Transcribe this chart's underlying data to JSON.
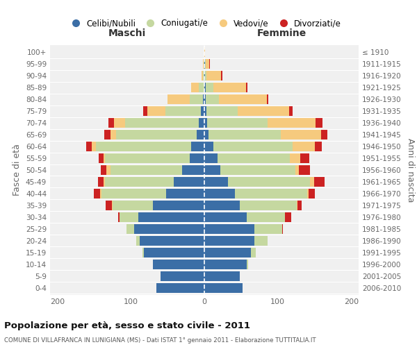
{
  "age_groups": [
    "0-4",
    "5-9",
    "10-14",
    "15-19",
    "20-24",
    "25-29",
    "30-34",
    "35-39",
    "40-44",
    "45-49",
    "50-54",
    "55-59",
    "60-64",
    "65-69",
    "70-74",
    "75-79",
    "80-84",
    "85-89",
    "90-94",
    "95-99",
    "100+"
  ],
  "birth_years": [
    "2006-2010",
    "2001-2005",
    "1996-2000",
    "1991-1995",
    "1986-1990",
    "1981-1985",
    "1976-1980",
    "1971-1975",
    "1966-1970",
    "1961-1965",
    "1956-1960",
    "1951-1955",
    "1946-1950",
    "1941-1945",
    "1936-1940",
    "1931-1935",
    "1926-1930",
    "1921-1925",
    "1916-1920",
    "1911-1915",
    "≤ 1910"
  ],
  "colors": {
    "celibi": "#3b6ea6",
    "coniugati": "#c5d8a0",
    "vedovi": "#f6ca7e",
    "divorziati": "#cc2222"
  },
  "male": {
    "celibi": [
      65,
      60,
      70,
      82,
      88,
      96,
      90,
      70,
      52,
      42,
      30,
      20,
      18,
      10,
      8,
      5,
      2,
      0,
      0,
      0,
      0
    ],
    "coniugati": [
      0,
      0,
      0,
      2,
      5,
      10,
      25,
      55,
      88,
      93,
      98,
      115,
      130,
      110,
      100,
      48,
      18,
      8,
      2,
      1,
      0
    ],
    "vedovi": [
      0,
      0,
      0,
      0,
      0,
      0,
      0,
      1,
      2,
      2,
      5,
      2,
      5,
      8,
      15,
      25,
      30,
      10,
      2,
      1,
      0
    ],
    "divorziati": [
      0,
      0,
      0,
      0,
      0,
      0,
      2,
      8,
      8,
      8,
      8,
      7,
      8,
      8,
      8,
      5,
      0,
      0,
      0,
      0,
      0
    ]
  },
  "female": {
    "celibi": [
      52,
      48,
      58,
      63,
      68,
      68,
      58,
      48,
      42,
      32,
      22,
      18,
      12,
      6,
      4,
      3,
      2,
      2,
      1,
      1,
      0
    ],
    "coniugati": [
      0,
      0,
      2,
      7,
      18,
      38,
      52,
      78,
      98,
      112,
      102,
      98,
      108,
      98,
      82,
      42,
      18,
      10,
      2,
      1,
      0
    ],
    "vedovi": [
      0,
      0,
      0,
      0,
      0,
      0,
      0,
      1,
      2,
      5,
      5,
      15,
      30,
      55,
      65,
      70,
      65,
      45,
      20,
      5,
      1
    ],
    "divorziati": [
      0,
      0,
      0,
      0,
      0,
      1,
      8,
      5,
      8,
      15,
      15,
      12,
      10,
      8,
      10,
      5,
      2,
      2,
      2,
      1,
      0
    ]
  },
  "title": "Popolazione per età, sesso e stato civile - 2011",
  "subtitle": "COMUNE DI VILLAFRANCA IN LUNIGIANA (MS) - Dati ISTAT 1° gennaio 2011 - Elaborazione TUTTITALIA.IT",
  "xlabel_left": "Maschi",
  "xlabel_right": "Femmine",
  "ylabel_left": "Fasce di età",
  "ylabel_right": "Anni di nascita",
  "xlim": 210,
  "legend_labels": [
    "Celibi/Nubili",
    "Coniugati/e",
    "Vedovi/e",
    "Divorziati/e"
  ],
  "bg_color": "#f0f0f0"
}
